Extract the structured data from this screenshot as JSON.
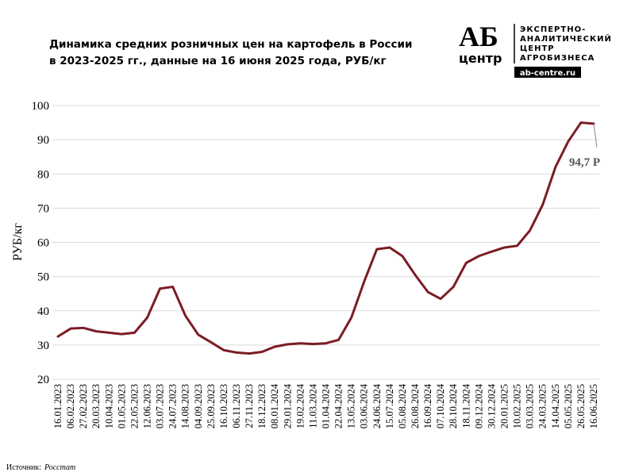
{
  "chart_data": {
    "type": "line",
    "title": [
      "Динамика средних розничных цен на картофель в России",
      "в 2023-2025 гг., данные на 16 июня 2025 года, РУБ/кг"
    ],
    "y_label": "РУБ/кг",
    "annotation": "94,7 Р",
    "source": {
      "label": "Источник:",
      "name": "Росстат"
    },
    "logo": {
      "mark": "АБ",
      "word": "центр",
      "lines": [
        "ЭКСПЕРТНО-",
        "АНАЛИТИЧЕСКИЙ",
        "ЦЕНТР",
        "АГРОБИЗНЕСА"
      ],
      "site": "ab-centre.ru"
    },
    "categories": [
      "16.01.2023",
      "06.02.2023",
      "27.02.2023",
      "20.03.2023",
      "10.04.2023",
      "01.05.2023",
      "22.05.2023",
      "12.06.2023",
      "03.07.2023",
      "24.07.2023",
      "14.08.2023",
      "04.09.2023",
      "25.09.2023",
      "16.10.2023",
      "06.11.2023",
      "27.11.2023",
      "18.12.2023",
      "08.01.2024",
      "29.01.2024",
      "19.02.2024",
      "11.03.2024",
      "01.04.2024",
      "22.04.2024",
      "13.05.2024",
      "03.06.2024",
      "24.06.2024",
      "15.07.2024",
      "05.08.2024",
      "26.08.2024",
      "16.09.2024",
      "07.10.2024",
      "28.10.2024",
      "18.11.2024",
      "09.12.2024",
      "30.12.2024",
      "20.01.2025",
      "10.02.2025",
      "03.03.2025",
      "24.03.2025",
      "14.04.2025",
      "05.05.2025",
      "26.05.2025",
      "16.06.2025"
    ],
    "values": [
      32.5,
      34.8,
      35,
      34,
      33.6,
      33.2,
      33.6,
      38,
      46.5,
      47,
      38.5,
      33,
      30.8,
      28.5,
      27.8,
      27.5,
      28,
      29.5,
      30.2,
      30.5,
      30.3,
      30.5,
      31.5,
      38,
      48.5,
      58,
      58.5,
      56,
      50.5,
      45.5,
      43.5,
      47,
      54,
      56,
      57.3,
      58.5,
      59,
      63.5,
      71,
      82,
      89.5,
      95,
      94.7
    ],
    "color": "#7b1c24",
    "ylim": [
      20,
      100
    ],
    "yticks": [
      20,
      30,
      40,
      50,
      60,
      70,
      80,
      90,
      100
    ],
    "grid": true
  }
}
